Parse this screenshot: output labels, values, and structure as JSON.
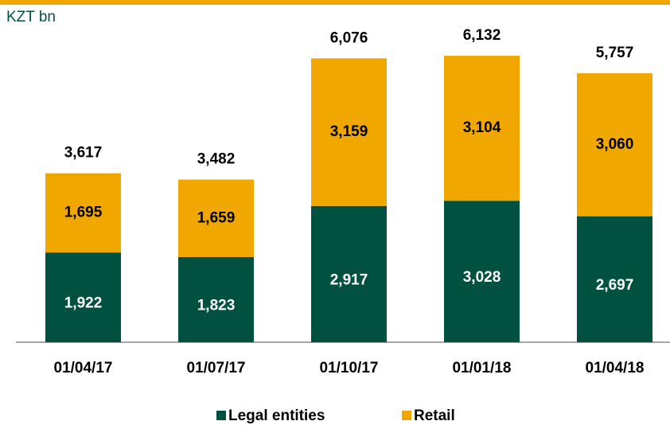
{
  "chart_data": {
    "type": "stacked_bar",
    "unit_label": "KZT bn",
    "categories": [
      "01/04/17",
      "01/07/17",
      "01/10/17",
      "01/01/18",
      "01/04/18"
    ],
    "series": [
      {
        "name": "Legal entities",
        "color": "#00513f",
        "values": [
          1922,
          1823,
          2917,
          3028,
          2697
        ],
        "value_labels": [
          "1,922",
          "1,823",
          "2,917",
          "3,028",
          "2,697"
        ]
      },
      {
        "name": "Retail",
        "color": "#f0a800",
        "values": [
          1695,
          1659,
          3159,
          3104,
          3060
        ],
        "value_labels": [
          "1,695",
          "1,659",
          "3,159",
          "3,104",
          "3,060"
        ]
      }
    ],
    "totals": [
      3617,
      3482,
      6076,
      6132,
      5757
    ],
    "totals_labels": [
      "3,617",
      "3,482",
      "6,076",
      "6,132",
      "5,757"
    ],
    "legend": "bottom"
  }
}
